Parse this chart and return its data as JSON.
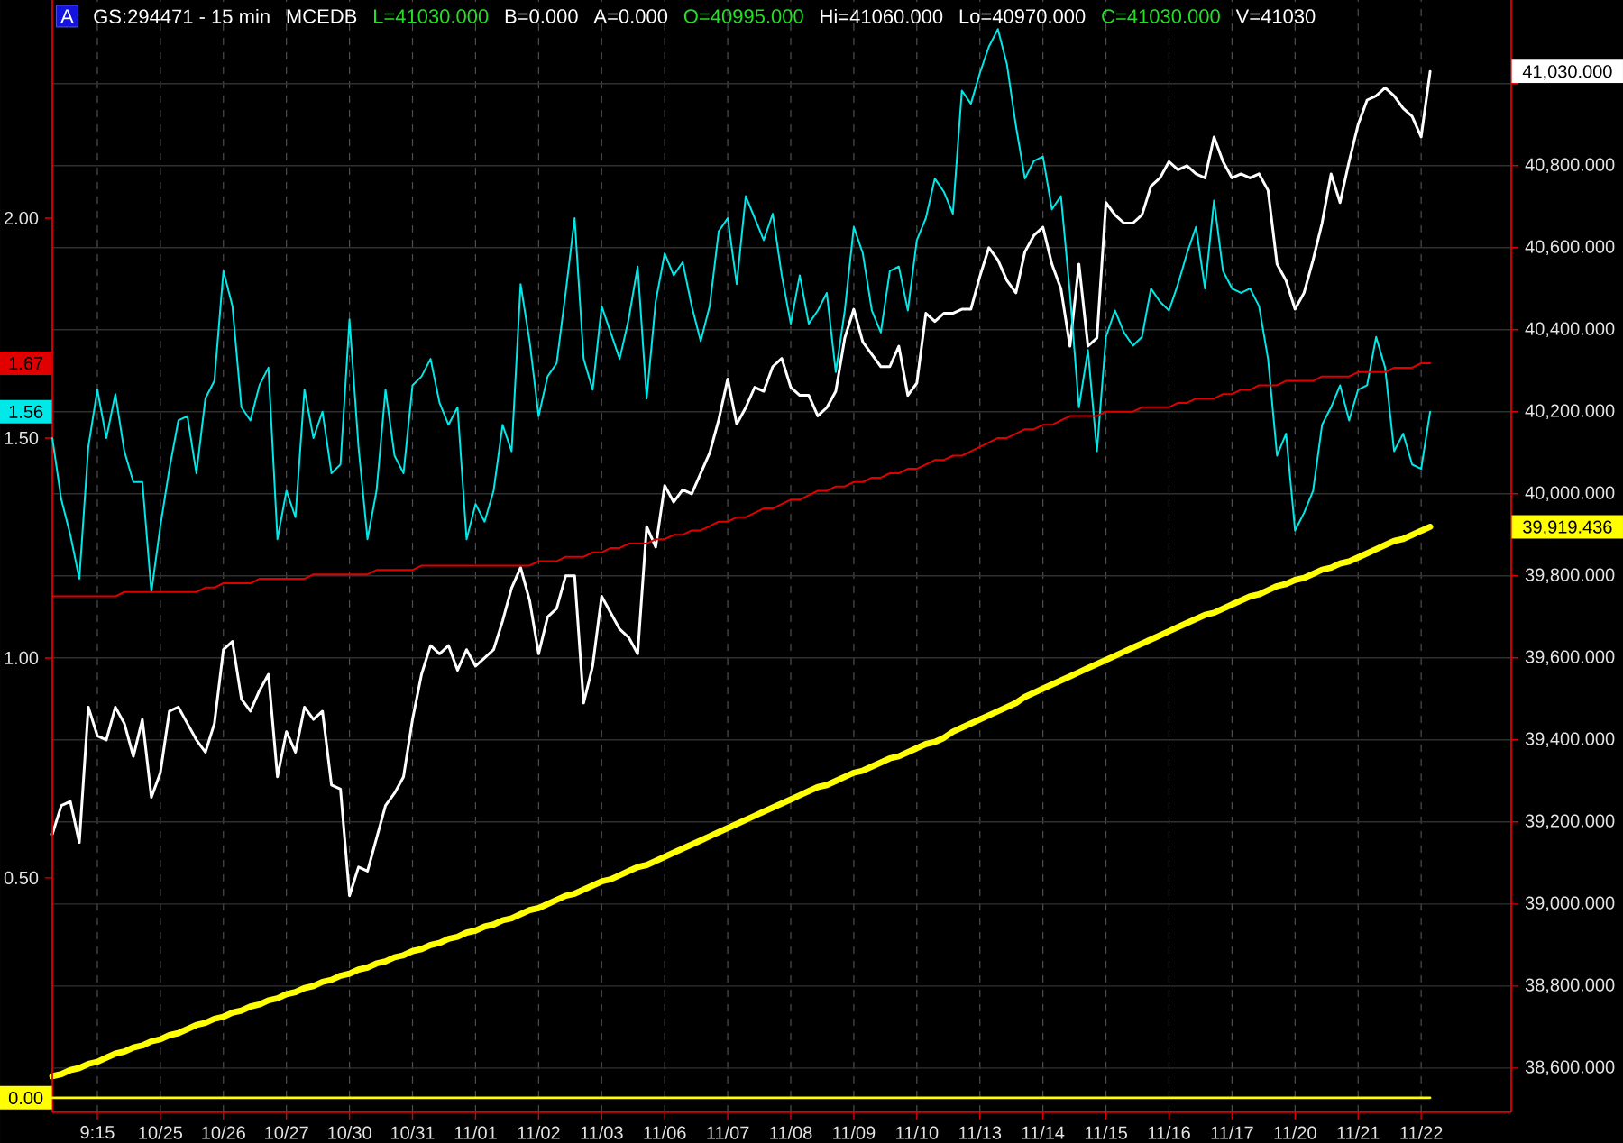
{
  "chart_data": {
    "type": "line",
    "title": "GS:294471 - 15 min",
    "annotations": [
      "A",
      "MCEDB",
      "L=41030.000",
      "B=0.000",
      "A=0.000",
      "O=40995.000",
      "Hi=41060.000",
      "Lo=40970.000",
      "C=41030.000",
      "V=41030"
    ],
    "grid": true,
    "categories": [
      null,
      null,
      null,
      null,
      null,
      "9:15",
      null,
      null,
      null,
      null,
      null,
      null,
      "10/25",
      null,
      null,
      null,
      null,
      null,
      null,
      "10/26",
      null,
      null,
      null,
      null,
      null,
      null,
      "10/27",
      null,
      null,
      null,
      null,
      null,
      null,
      "10/30",
      null,
      null,
      null,
      null,
      null,
      null,
      "10/31",
      null,
      null,
      null,
      null,
      null,
      null,
      "11/01",
      null,
      null,
      null,
      null,
      null,
      null,
      "11/02",
      null,
      null,
      null,
      null,
      null,
      null,
      "11/03",
      null,
      null,
      null,
      null,
      null,
      null,
      "11/06",
      null,
      null,
      null,
      null,
      null,
      null,
      "11/07",
      null,
      null,
      null,
      null,
      null,
      null,
      "11/08",
      null,
      null,
      null,
      null,
      null,
      null,
      "11/09",
      null,
      null,
      null,
      null,
      null,
      null,
      "11/10",
      null,
      null,
      null,
      null,
      null,
      null,
      "11/13",
      null,
      null,
      null,
      null,
      null,
      null,
      "11/14",
      null,
      null,
      null,
      null,
      null,
      null,
      "11/15",
      null,
      null,
      null,
      null,
      null,
      null,
      "11/16",
      null,
      null,
      null,
      null,
      null,
      null,
      "11/17",
      null,
      null,
      null,
      null,
      null,
      null,
      "11/20",
      null,
      null,
      null,
      null,
      null,
      null,
      "11/21",
      null,
      null,
      null,
      null,
      null,
      null,
      "11/22",
      null,
      null,
      null,
      null,
      null,
      null,
      null,
      null,
      null,
      null
    ],
    "ylim": [
      38492,
      41204
    ],
    "y2lim": [
      -0.033,
      2.496
    ],
    "yticks": [
      {
        "value": 38600,
        "label": "38,600.000"
      },
      {
        "value": 38800,
        "label": "38,800.000"
      },
      {
        "value": 39000,
        "label": "39,000.000"
      },
      {
        "value": 39200,
        "label": "39,200.000"
      },
      {
        "value": 39400,
        "label": "39,400.000"
      },
      {
        "value": 39600,
        "label": "39,600.000"
      },
      {
        "value": 39800,
        "label": "39,800.000"
      },
      {
        "value": 39919.436,
        "label": "39,919.436"
      },
      {
        "value": 40000,
        "label": "40,000.000"
      },
      {
        "value": 40200,
        "label": "40,200.000"
      },
      {
        "value": 40400,
        "label": "40,400.000"
      },
      {
        "value": 40600,
        "label": "40,600.000"
      },
      {
        "value": 40800,
        "label": "40,800.000"
      },
      {
        "value": 41000,
        "label": null
      },
      {
        "value": 41030,
        "label": "41,030.000"
      }
    ],
    "y2ticks": [
      {
        "value": 0,
        "label": "0.00"
      },
      {
        "value": 0.5,
        "label": "0.50"
      },
      {
        "value": 1,
        "label": "1.00"
      },
      {
        "value": 1.5,
        "label": "1.50"
      },
      {
        "value": 1.56,
        "label": "1.56"
      },
      {
        "value": 1.67,
        "label": "1.67"
      },
      {
        "value": 2,
        "label": "2.00"
      }
    ],
    "series": [
      {
        "color": "#ffffff",
        "values": [
          39170,
          39240,
          39250,
          39150,
          39480,
          39410,
          39400,
          39480,
          39440,
          39360,
          39450,
          39260,
          39320,
          39470,
          39480,
          39440,
          39400,
          39370,
          39440,
          39620,
          39640,
          39500,
          39470,
          39520,
          39560,
          39310,
          39420,
          39370,
          39480,
          39450,
          39470,
          39290,
          39280,
          39020,
          39090,
          39080,
          39160,
          39240,
          39270,
          39310,
          39450,
          39560,
          39630,
          39610,
          39630,
          39570,
          39620,
          39580,
          39600,
          39620,
          39690,
          39770,
          39820,
          39740,
          39610,
          39700,
          39720,
          39800,
          39800,
          39490,
          39580,
          39750,
          39710,
          39670,
          39650,
          39610,
          39920,
          39870,
          40020,
          39980,
          40010,
          40000,
          40050,
          40100,
          40180,
          40280,
          40170,
          40210,
          40260,
          40250,
          40310,
          40330,
          40260,
          40240,
          40240,
          40190,
          40210,
          40250,
          40380,
          40450,
          40370,
          40340,
          40310,
          40310,
          40360,
          40240,
          40270,
          40440,
          40420,
          40440,
          40440,
          40450,
          40450,
          40530,
          40600,
          40570,
          40520,
          40490,
          40590,
          40630,
          40650,
          40560,
          40500,
          40360,
          40560,
          40360,
          40380,
          40710,
          40680,
          40660,
          40660,
          40680,
          40750,
          40770,
          40810,
          40790,
          40800,
          40780,
          40770,
          40870,
          40810,
          40770,
          40780,
          40770,
          40780,
          40740,
          40560,
          40520,
          40450,
          40490,
          40570,
          40660,
          40780,
          40710,
          40810,
          40900,
          40960,
          40970,
          40990,
          40970,
          40940,
          40920,
          40870,
          41030,
          null,
          null,
          null,
          null,
          null,
          null,
          null,
          null,
          null
        ]
      },
      {
        "color": "#ffff00",
        "values": [
          38580,
          38585,
          38595,
          38600,
          38610,
          38615,
          38625,
          38635,
          38640,
          38650,
          38655,
          38665,
          38670,
          38680,
          38685,
          38695,
          38705,
          38710,
          38720,
          38725,
          38735,
          38740,
          38750,
          38755,
          38765,
          38770,
          38780,
          38785,
          38795,
          38800,
          38810,
          38815,
          38825,
          38830,
          38840,
          38845,
          38855,
          38860,
          38870,
          38875,
          38885,
          38890,
          38900,
          38905,
          38915,
          38920,
          38930,
          38935,
          38945,
          38950,
          38960,
          38965,
          38975,
          38985,
          38990,
          39000,
          39010,
          39020,
          39025,
          39035,
          39045,
          39055,
          39060,
          39070,
          39080,
          39090,
          39095,
          39105,
          39115,
          39125,
          39135,
          39145,
          39155,
          39165,
          39175,
          39185,
          39195,
          39205,
          39215,
          39225,
          39235,
          39245,
          39255,
          39265,
          39275,
          39285,
          39290,
          39300,
          39310,
          39320,
          39325,
          39335,
          39345,
          39355,
          39360,
          39370,
          39380,
          39390,
          39395,
          39405,
          39420,
          39430,
          39440,
          39450,
          39460,
          39470,
          39480,
          39490,
          39505,
          39515,
          39525,
          39535,
          39545,
          39555,
          39565,
          39575,
          39585,
          39595,
          39605,
          39615,
          39625,
          39635,
          39645,
          39655,
          39665,
          39675,
          39685,
          39695,
          39705,
          39710,
          39720,
          39730,
          39740,
          39750,
          39755,
          39765,
          39775,
          39780,
          39790,
          39795,
          39805,
          39815,
          39820,
          39830,
          39835,
          39845,
          39855,
          39865,
          39875,
          39885,
          39890,
          39900,
          39910,
          39919.436,
          null,
          null,
          null,
          null,
          null,
          null,
          null,
          null,
          null
        ]
      },
      {
        "color": "#00e8e8",
        "axis": "y2",
        "values": [
          1.5,
          1.36,
          1.28,
          1.18,
          1.48,
          1.61,
          1.5,
          1.6,
          1.47,
          1.4,
          1.4,
          1.15,
          1.3,
          1.43,
          1.54,
          1.55,
          1.42,
          1.59,
          1.63,
          1.88,
          1.8,
          1.57,
          1.54,
          1.62,
          1.66,
          1.27,
          1.38,
          1.32,
          1.61,
          1.5,
          1.56,
          1.42,
          1.44,
          1.77,
          1.48,
          1.27,
          1.38,
          1.61,
          1.46,
          1.42,
          1.62,
          1.64,
          1.68,
          1.58,
          1.53,
          1.57,
          1.27,
          1.35,
          1.31,
          1.38,
          1.53,
          1.47,
          1.85,
          1.72,
          1.55,
          1.64,
          1.67,
          1.83,
          2.0,
          1.68,
          1.61,
          1.8,
          1.74,
          1.68,
          1.77,
          1.89,
          1.59,
          1.81,
          1.92,
          1.87,
          1.9,
          1.8,
          1.72,
          1.8,
          1.97,
          2.0,
          1.85,
          2.05,
          2.0,
          1.95,
          2.01,
          1.87,
          1.76,
          1.87,
          1.76,
          1.79,
          1.83,
          1.65,
          1.79,
          1.98,
          1.92,
          1.79,
          1.74,
          1.88,
          1.89,
          1.79,
          1.95,
          2.0,
          2.09,
          2.06,
          2.01,
          2.29,
          2.26,
          2.33,
          2.39,
          2.43,
          2.35,
          2.21,
          2.09,
          2.13,
          2.14,
          2.02,
          2.05,
          1.83,
          1.57,
          1.7,
          1.47,
          1.73,
          1.79,
          1.74,
          1.71,
          1.73,
          1.84,
          1.81,
          1.79,
          1.85,
          1.92,
          1.98,
          1.84,
          2.04,
          1.88,
          1.84,
          1.83,
          1.84,
          1.8,
          1.68,
          1.46,
          1.51,
          1.29,
          1.33,
          1.38,
          1.53,
          1.57,
          1.62,
          1.54,
          1.61,
          1.62,
          1.73,
          1.66,
          1.47,
          1.51,
          1.44,
          1.43,
          1.56,
          null,
          null,
          null,
          null,
          null,
          null,
          null,
          null,
          null
        ]
      },
      {
        "color": "#e00000",
        "axis": "y2",
        "values": [
          1.14,
          1.14,
          1.14,
          1.14,
          1.14,
          1.14,
          1.14,
          1.14,
          1.15,
          1.15,
          1.15,
          1.15,
          1.15,
          1.15,
          1.15,
          1.15,
          1.15,
          1.16,
          1.16,
          1.17,
          1.17,
          1.17,
          1.17,
          1.18,
          1.18,
          1.18,
          1.18,
          1.18,
          1.18,
          1.19,
          1.19,
          1.19,
          1.19,
          1.19,
          1.19,
          1.19,
          1.2,
          1.2,
          1.2,
          1.2,
          1.2,
          1.21,
          1.21,
          1.21,
          1.21,
          1.21,
          1.21,
          1.21,
          1.21,
          1.21,
          1.21,
          1.21,
          1.21,
          1.21,
          1.22,
          1.22,
          1.22,
          1.23,
          1.23,
          1.23,
          1.24,
          1.24,
          1.25,
          1.25,
          1.26,
          1.26,
          1.26,
          1.27,
          1.27,
          1.28,
          1.28,
          1.29,
          1.29,
          1.3,
          1.31,
          1.31,
          1.32,
          1.32,
          1.33,
          1.34,
          1.34,
          1.35,
          1.36,
          1.36,
          1.37,
          1.38,
          1.38,
          1.39,
          1.39,
          1.4,
          1.4,
          1.41,
          1.41,
          1.42,
          1.42,
          1.43,
          1.43,
          1.44,
          1.45,
          1.45,
          1.46,
          1.46,
          1.47,
          1.48,
          1.49,
          1.5,
          1.5,
          1.51,
          1.52,
          1.52,
          1.53,
          1.53,
          1.54,
          1.55,
          1.55,
          1.55,
          1.55,
          1.56,
          1.56,
          1.56,
          1.56,
          1.57,
          1.57,
          1.57,
          1.57,
          1.58,
          1.58,
          1.59,
          1.59,
          1.59,
          1.6,
          1.6,
          1.61,
          1.61,
          1.62,
          1.62,
          1.62,
          1.63,
          1.63,
          1.63,
          1.63,
          1.64,
          1.64,
          1.64,
          1.64,
          1.65,
          1.65,
          1.65,
          1.65,
          1.66,
          1.66,
          1.66,
          1.67,
          1.67,
          null,
          null,
          null,
          null,
          null,
          null,
          null,
          null,
          null
        ]
      },
      {
        "color": "#ffff00",
        "axis": "y2",
        "values": [
          0,
          0,
          0,
          0,
          0,
          0,
          0,
          0,
          0,
          0,
          0,
          0,
          0,
          0,
          0,
          0,
          0,
          0,
          0,
          0,
          0,
          0,
          0,
          0,
          0,
          0,
          0,
          0,
          0,
          0,
          0,
          0,
          0,
          0,
          0,
          0,
          0,
          0,
          0,
          0,
          0,
          0,
          0,
          0,
          0,
          0,
          0,
          0,
          0,
          0,
          0,
          0,
          0,
          0,
          0,
          0,
          0,
          0,
          0,
          0,
          0,
          0,
          0,
          0,
          0,
          0,
          0,
          0,
          0,
          0,
          0,
          0,
          0,
          0,
          0,
          0,
          0,
          0,
          0,
          0,
          0,
          0,
          0,
          0,
          0,
          0,
          0,
          0,
          0,
          0,
          0,
          0,
          0,
          0,
          0,
          0,
          0,
          0,
          0,
          0,
          0,
          0,
          0,
          0,
          0,
          0,
          0,
          0,
          0,
          0,
          0,
          0,
          0,
          0,
          0,
          0,
          0,
          0,
          0,
          0,
          0,
          0,
          0,
          0,
          0,
          0,
          0,
          0,
          0,
          0,
          0,
          0,
          0,
          0,
          0,
          0,
          0,
          0,
          0,
          0,
          0,
          0,
          0,
          0,
          0,
          0,
          0,
          0,
          0,
          0,
          0,
          0,
          0,
          0,
          null,
          null,
          null,
          null,
          null,
          null,
          null,
          null,
          null
        ]
      }
    ]
  }
}
